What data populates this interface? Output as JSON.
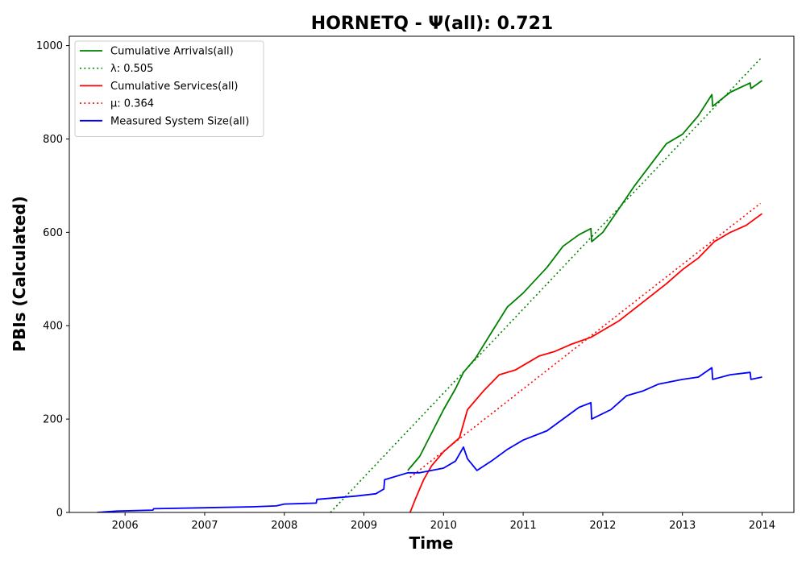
{
  "chart_data": {
    "type": "line",
    "title": "HORNETQ -  Ψ(all): 0.721",
    "xlabel": "Time",
    "ylabel": "PBIs (Calculated)",
    "xlim": [
      2005.3,
      2014.4
    ],
    "ylim": [
      0,
      1020
    ],
    "x_ticks": [
      2006,
      2007,
      2008,
      2009,
      2010,
      2011,
      2012,
      2013,
      2014
    ],
    "x_tick_labels": [
      "2006",
      "2007",
      "2008",
      "2009",
      "2010",
      "2011",
      "2012",
      "2013",
      "2014"
    ],
    "y_ticks": [
      0,
      200,
      400,
      600,
      800,
      1000
    ],
    "y_tick_labels": [
      "0",
      "200",
      "400",
      "600",
      "800",
      "1000"
    ],
    "grid": false,
    "legend_position": "top-left",
    "series": [
      {
        "name": "Cumulative Arrivals(all)",
        "style": "solid",
        "color": "#008000",
        "x": [
          2009.55,
          2009.7,
          2009.85,
          2010.0,
          2010.15,
          2010.25,
          2010.4,
          2010.6,
          2010.8,
          2011.0,
          2011.3,
          2011.5,
          2011.7,
          2011.85,
          2011.86,
          2012.0,
          2012.2,
          2012.4,
          2012.6,
          2012.8,
          2013.0,
          2013.2,
          2013.37,
          2013.38,
          2013.6,
          2013.85,
          2013.86,
          2014.0
        ],
        "y": [
          90,
          120,
          170,
          220,
          265,
          300,
          330,
          385,
          440,
          470,
          525,
          570,
          595,
          608,
          580,
          600,
          650,
          700,
          745,
          790,
          810,
          850,
          895,
          870,
          900,
          920,
          908,
          925
        ]
      },
      {
        "name": "λ: 0.505",
        "style": "dotted",
        "color": "#008000",
        "x": [
          2008.58,
          2013.98
        ],
        "y": [
          0,
          972
        ]
      },
      {
        "name": "Cumulative Services(all)",
        "style": "solid",
        "color": "#ff0000",
        "x": [
          2009.58,
          2009.65,
          2009.75,
          2009.85,
          2010.0,
          2010.2,
          2010.3,
          2010.5,
          2010.7,
          2010.9,
          2011.1,
          2011.2,
          2011.4,
          2011.6,
          2011.85,
          2012.0,
          2012.2,
          2012.5,
          2012.8,
          2013.0,
          2013.2,
          2013.4,
          2013.6,
          2013.8,
          2014.0
        ],
        "y": [
          0,
          30,
          70,
          100,
          130,
          160,
          220,
          260,
          295,
          305,
          325,
          335,
          345,
          360,
          375,
          390,
          410,
          450,
          490,
          520,
          545,
          580,
          600,
          615,
          640
        ]
      },
      {
        "name": "μ: 0.364",
        "style": "dotted",
        "color": "#ff0000",
        "x": [
          2009.58,
          2013.98
        ],
        "y": [
          75,
          662
        ]
      },
      {
        "name": "Measured System Size(all)",
        "style": "solid",
        "color": "#0000ff",
        "x": [
          2005.65,
          2005.9,
          2006.35,
          2006.36,
          2007.0,
          2007.6,
          2007.9,
          2008.0,
          2008.4,
          2008.41,
          2008.9,
          2009.15,
          2009.25,
          2009.26,
          2009.55,
          2009.7,
          2010.0,
          2010.15,
          2010.25,
          2010.3,
          2010.42,
          2010.6,
          2010.8,
          2011.0,
          2011.3,
          2011.5,
          2011.7,
          2011.85,
          2011.86,
          2012.1,
          2012.3,
          2012.5,
          2012.7,
          2013.0,
          2013.2,
          2013.37,
          2013.38,
          2013.6,
          2013.85,
          2013.86,
          2014.0
        ],
        "y": [
          0,
          3,
          5,
          8,
          10,
          12,
          14,
          18,
          20,
          28,
          35,
          40,
          50,
          70,
          85,
          85,
          95,
          110,
          140,
          115,
          90,
          110,
          135,
          155,
          175,
          200,
          225,
          235,
          200,
          220,
          250,
          260,
          275,
          285,
          290,
          310,
          285,
          295,
          300,
          285,
          290
        ]
      }
    ]
  },
  "colors": {
    "arrivals": "#008000",
    "services": "#ff0000",
    "system_size": "#0000ff",
    "axes": "#000000",
    "background": "#ffffff"
  }
}
